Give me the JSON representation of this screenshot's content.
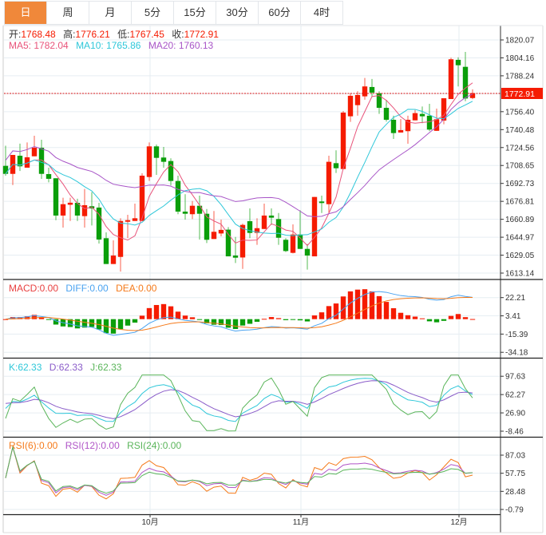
{
  "tabs": [
    {
      "label": "日",
      "active": true
    },
    {
      "label": "周"
    },
    {
      "label": "月"
    },
    {
      "label": "5分"
    },
    {
      "label": "15分"
    },
    {
      "label": "30分"
    },
    {
      "label": "60分"
    },
    {
      "label": "4时"
    }
  ],
  "colors": {
    "up": "#f51b00",
    "down": "#0a9e0a",
    "accent": "#f0883a",
    "ma5": "#e8537a",
    "ma10": "#2ec7d9",
    "ma20": "#a855c7",
    "diff": "#4aa3f0",
    "dea": "#f57a1a",
    "k": "#2ec7d9",
    "d": "#8a5cc9",
    "j": "#5ab55a",
    "rsi6": "#f57a1a",
    "rsi12": "#b055c7",
    "rsi24": "#5ab55a"
  },
  "ohlc_legend": {
    "open_label": "开:",
    "open": "1768.48",
    "high_label": "高:",
    "high": "1776.21",
    "low_label": "低:",
    "low": "1767.45",
    "close_label": "收:",
    "close": "1772.91"
  },
  "ma_legend": {
    "ma5": "MA5: 1782.04",
    "ma10": "MA10: 1765.86",
    "ma20": "MA20: 1760.13"
  },
  "macd_legend": {
    "macd": "MACD:0.00",
    "diff": "DIFF:0.00",
    "dea": "DEA:0.00"
  },
  "kdj_legend": {
    "k": "K:62.33",
    "d": "D:62.33",
    "j": "J:62.33"
  },
  "rsi_legend": {
    "rsi6": "RSI(6):0.00",
    "rsi12": "RSI(12):0.00",
    "rsi24": "RSI(24):0.00"
  },
  "current_price": "1772.91",
  "chart_data": {
    "type": "candlestick",
    "price_axis": {
      "ticks": [
        "1820.07",
        "1804.16",
        "1788.24",
        "1772.32",
        "1756.40",
        "1740.48",
        "1724.56",
        "1708.65",
        "1692.73",
        "1676.81",
        "1660.89",
        "1644.97",
        "1629.05",
        "1613.14"
      ],
      "range": [
        1613.14,
        1820.07
      ]
    },
    "visible_price_ticks": [
      "1820.07",
      "1804.16",
      "1788.24",
      "1756.40",
      "1740.48",
      "1724.56",
      "1708.65",
      "1692.73",
      "1676.81",
      "1660.89",
      "1644.97",
      "1629.05",
      "1613.14"
    ],
    "x_labels": [
      {
        "index": 19,
        "label": "10月"
      },
      {
        "index": 40,
        "label": "11月"
      },
      {
        "index": 62,
        "label": "12月"
      }
    ],
    "candles_ohlc": [
      [
        1708.3,
        1726.2,
        1699.5,
        1701.2
      ],
      [
        1701.2,
        1718.0,
        1691.3,
        1718.0
      ],
      [
        1717.3,
        1728.0,
        1703.8,
        1707.9
      ],
      [
        1706.7,
        1729.1,
        1706.7,
        1715.9
      ],
      [
        1716.8,
        1735.0,
        1716.8,
        1724.4
      ],
      [
        1724.4,
        1731.5,
        1696.8,
        1701.2
      ],
      [
        1701.0,
        1706.7,
        1693.7,
        1696.8
      ],
      [
        1697.3,
        1697.3,
        1660.1,
        1664.2
      ],
      [
        1664.2,
        1680.0,
        1653.5,
        1674.3
      ],
      [
        1673.8,
        1680.0,
        1659.4,
        1675.6
      ],
      [
        1675.5,
        1679.1,
        1659.4,
        1664.2
      ],
      [
        1663.7,
        1687.8,
        1653.5,
        1673.4
      ],
      [
        1672.5,
        1685.0,
        1655.4,
        1670.5
      ],
      [
        1671.3,
        1675.5,
        1639.4,
        1642.9
      ],
      [
        1644.1,
        1649.3,
        1621.2,
        1621.2
      ],
      [
        1621.2,
        1642.2,
        1621.2,
        1628.7
      ],
      [
        1627.5,
        1661.8,
        1614.5,
        1659.4
      ],
      [
        1658.7,
        1664.9,
        1644.1,
        1660.1
      ],
      [
        1659.4,
        1674.8,
        1659.4,
        1661.8
      ],
      [
        1659.4,
        1701.7,
        1659.4,
        1699.6
      ],
      [
        1698.4,
        1729.1,
        1694.9,
        1725.6
      ],
      [
        1725.6,
        1727.2,
        1700.3,
        1715.4
      ],
      [
        1715.7,
        1725.1,
        1706.7,
        1711.9
      ],
      [
        1712.6,
        1715.0,
        1690.9,
        1694.9
      ],
      [
        1694.9,
        1699.6,
        1665.4,
        1667.7
      ],
      [
        1667.7,
        1683.1,
        1660.6,
        1665.8
      ],
      [
        1665.4,
        1677.1,
        1661.1,
        1672.9
      ],
      [
        1672.9,
        1681.9,
        1642.9,
        1665.8
      ],
      [
        1665.8,
        1670.0,
        1639.8,
        1642.7
      ],
      [
        1643.4,
        1668.2,
        1643.4,
        1649.8
      ],
      [
        1648.3,
        1660.6,
        1645.7,
        1651.5
      ],
      [
        1651.7,
        1654.0,
        1628.0,
        1628.0
      ],
      [
        1628.7,
        1645.2,
        1622.1,
        1626.8
      ],
      [
        1627.0,
        1657.1,
        1616.9,
        1655.9
      ],
      [
        1659.2,
        1670.5,
        1644.1,
        1648.8
      ],
      [
        1648.8,
        1661.8,
        1638.2,
        1653.0
      ],
      [
        1652.3,
        1674.8,
        1652.3,
        1664.2
      ],
      [
        1664.2,
        1670.5,
        1655.9,
        1662.3
      ],
      [
        1661.1,
        1666.5,
        1638.2,
        1644.5
      ],
      [
        1642.7,
        1644.1,
        1631.8,
        1632.7
      ],
      [
        1631.1,
        1656.4,
        1630.6,
        1647.4
      ],
      [
        1647.4,
        1668.9,
        1634.6,
        1634.6
      ],
      [
        1634.6,
        1638.9,
        1616.2,
        1628.7
      ],
      [
        1628.0,
        1680.7,
        1628.0,
        1680.7
      ],
      [
        1676.7,
        1681.9,
        1666.5,
        1675.3
      ],
      [
        1674.3,
        1717.3,
        1666.5,
        1711.9
      ],
      [
        1710.7,
        1722.1,
        1702.0,
        1706.2
      ],
      [
        1705.5,
        1757.0,
        1705.5,
        1755.6
      ],
      [
        1752.3,
        1772.8,
        1747.3,
        1770.5
      ],
      [
        1762.2,
        1774.5,
        1752.8,
        1771.2
      ],
      [
        1770.0,
        1786.3,
        1767.0,
        1778.8
      ],
      [
        1778.3,
        1785.4,
        1769.3,
        1773.3
      ],
      [
        1772.8,
        1774.5,
        1754.4,
        1759.8
      ],
      [
        1759.8,
        1766.9,
        1747.6,
        1749.2
      ],
      [
        1749.2,
        1752.8,
        1732.2,
        1737.4
      ],
      [
        1737.9,
        1749.9,
        1737.9,
        1740.0
      ],
      [
        1739.1,
        1752.8,
        1727.9,
        1749.2
      ],
      [
        1748.7,
        1757.9,
        1748.7,
        1755.1
      ],
      [
        1754.4,
        1761.0,
        1746.2,
        1752.3
      ],
      [
        1752.8,
        1763.4,
        1739.1,
        1740.5
      ],
      [
        1739.4,
        1759.1,
        1739.4,
        1749.7
      ],
      [
        1748.5,
        1768.3,
        1745.2,
        1768.3
      ],
      [
        1767.6,
        1804.3,
        1767.6,
        1802.9
      ],
      [
        1802.4,
        1804.7,
        1778.8,
        1797.6
      ],
      [
        1796.2,
        1809.4,
        1765.7,
        1768.1
      ],
      [
        1768.48,
        1776.21,
        1767.45,
        1772.91
      ]
    ],
    "macd_axis": {
      "ticks": [
        "22.21",
        "3.41",
        "-15.39",
        "-34.18"
      ],
      "range": [
        -34.18,
        22.21
      ]
    },
    "kdj_axis": {
      "ticks": [
        "97.63",
        "62.27",
        "26.90",
        "-8.46"
      ],
      "range": [
        -8.46,
        97.63
      ]
    },
    "rsi_axis": {
      "ticks": [
        "87.03",
        "57.75",
        "28.48",
        "-0.79"
      ],
      "range": [
        -0.79,
        87.03
      ]
    }
  }
}
